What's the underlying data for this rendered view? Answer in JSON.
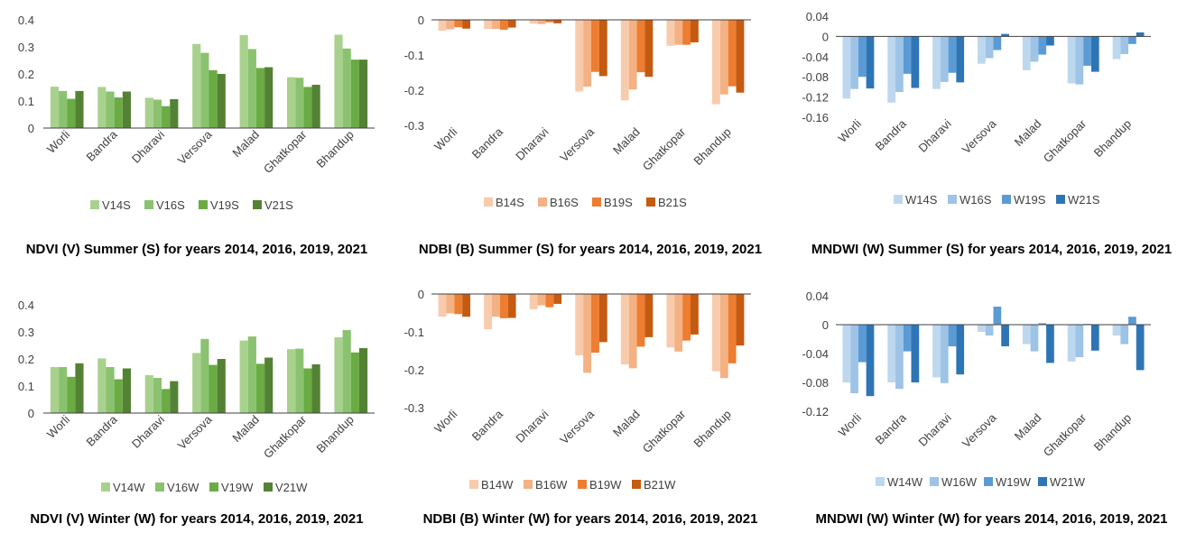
{
  "chart_data": [
    {
      "id": "ndvi-summer",
      "type": "bar",
      "title": "NDVI (V) Summer (S) for years 2014, 2016, 2019, 2021",
      "categories": [
        "Worli",
        "Bandra",
        "Dharavi",
        "Versova",
        "Malad",
        "Ghatkopar",
        "Bhandup"
      ],
      "series": [
        {
          "name": "V14S",
          "color": "#a9d18e",
          "values": [
            0.153,
            0.152,
            0.112,
            0.311,
            0.344,
            0.188,
            0.345
          ]
        },
        {
          "name": "V16S",
          "color": "#8bc270",
          "values": [
            0.137,
            0.135,
            0.105,
            0.278,
            0.292,
            0.186,
            0.294
          ]
        },
        {
          "name": "V19S",
          "color": "#6aab44",
          "values": [
            0.108,
            0.113,
            0.081,
            0.214,
            0.222,
            0.152,
            0.253
          ]
        },
        {
          "name": "V21S",
          "color": "#548235",
          "values": [
            0.137,
            0.135,
            0.107,
            0.2,
            0.225,
            0.16,
            0.253
          ]
        }
      ],
      "yticks": [
        "0.4",
        "0.3",
        "0.2",
        "0.1",
        "0"
      ],
      "ylim": [
        0,
        0.4
      ],
      "legend": "bottom"
    },
    {
      "id": "ndbi-summer",
      "type": "bar",
      "title": "NDBI (B) Summer (S) for years 2014, 2016, 2019, 2021",
      "categories": [
        "Worli",
        "Bandra",
        "Dharavi",
        "Versova",
        "Malad",
        "Ghatkopar",
        "Bhandup"
      ],
      "series": [
        {
          "name": "B14S",
          "color": "#f8cbad",
          "values": [
            -0.031,
            -0.026,
            -0.011,
            -0.204,
            -0.229,
            -0.074,
            -0.24
          ]
        },
        {
          "name": "B16S",
          "color": "#f4b183",
          "values": [
            -0.027,
            -0.026,
            -0.012,
            -0.19,
            -0.198,
            -0.071,
            -0.212
          ]
        },
        {
          "name": "B19S",
          "color": "#ed7d31",
          "values": [
            -0.021,
            -0.028,
            -0.007,
            -0.148,
            -0.149,
            -0.071,
            -0.189
          ]
        },
        {
          "name": "B21S",
          "color": "#c55a11",
          "values": [
            -0.025,
            -0.022,
            -0.01,
            -0.16,
            -0.162,
            -0.064,
            -0.207
          ]
        }
      ],
      "yticks": [
        "0",
        "-0.1",
        "-0.2",
        "-0.3"
      ],
      "ylim": [
        -0.3,
        0
      ],
      "legend": "bottom"
    },
    {
      "id": "mndwi-summer",
      "type": "bar",
      "title": "MNDWI (W) Summer (S) for years 2014, 2016, 2019, 2021",
      "categories": [
        "Worli",
        "Bandra",
        "Dharavi",
        "Versova",
        "Malad",
        "Ghatkopar",
        "Bhandup"
      ],
      "series": [
        {
          "name": "W14S",
          "color": "#bdd7ee",
          "values": [
            -0.123,
            -0.131,
            -0.104,
            -0.054,
            -0.067,
            -0.093,
            -0.045
          ]
        },
        {
          "name": "W16S",
          "color": "#9dc3e6",
          "values": [
            -0.104,
            -0.11,
            -0.09,
            -0.043,
            -0.05,
            -0.095,
            -0.035
          ]
        },
        {
          "name": "W19S",
          "color": "#5b9bd5",
          "values": [
            -0.08,
            -0.074,
            -0.072,
            -0.027,
            -0.036,
            -0.058,
            -0.015
          ]
        },
        {
          "name": "W21S",
          "color": "#2e75b6",
          "values": [
            -0.103,
            -0.102,
            -0.091,
            0.005,
            -0.018,
            -0.07,
            0.008
          ]
        }
      ],
      "yticks": [
        "0.04",
        "0",
        "-0.04",
        "-0.08",
        "-0.12",
        "-0.16"
      ],
      "ylim": [
        -0.16,
        0.04
      ],
      "legend": "bottom"
    },
    {
      "id": "ndvi-winter",
      "type": "bar",
      "title": "NDVI (V) Winter (W) for years 2014, 2016, 2019, 2021",
      "categories": [
        "Worli",
        "Bandra",
        "Dharavi",
        "Versova",
        "Malad",
        "Ghatkopar",
        "Bhandup"
      ],
      "series": [
        {
          "name": "V14W",
          "color": "#a9d18e",
          "values": [
            0.17,
            0.202,
            0.14,
            0.222,
            0.268,
            0.236,
            0.28
          ]
        },
        {
          "name": "V16W",
          "color": "#8bc270",
          "values": [
            0.17,
            0.17,
            0.13,
            0.274,
            0.283,
            0.238,
            0.307
          ]
        },
        {
          "name": "V19W",
          "color": "#6aab44",
          "values": [
            0.134,
            0.125,
            0.089,
            0.178,
            0.182,
            0.165,
            0.224
          ]
        },
        {
          "name": "V21W",
          "color": "#548235",
          "values": [
            0.184,
            0.165,
            0.118,
            0.2,
            0.205,
            0.18,
            0.24
          ]
        }
      ],
      "yticks": [
        "0.4",
        "0.3",
        "0.2",
        "0.1",
        "0"
      ],
      "ylim": [
        0,
        0.4
      ],
      "legend": "bottom"
    },
    {
      "id": "ndbi-winter",
      "type": "bar",
      "title": "NDBI (B) Winter (W) for years 2014, 2016, 2019, 2021",
      "categories": [
        "Worli",
        "Bandra",
        "Dharavi",
        "Versova",
        "Malad",
        "Ghatkopar",
        "Bhandup"
      ],
      "series": [
        {
          "name": "B14W",
          "color": "#f8cbad",
          "values": [
            -0.06,
            -0.093,
            -0.04,
            -0.162,
            -0.186,
            -0.141,
            -0.204
          ]
        },
        {
          "name": "B16W",
          "color": "#f4b183",
          "values": [
            -0.051,
            -0.06,
            -0.03,
            -0.208,
            -0.196,
            -0.152,
            -0.222
          ]
        },
        {
          "name": "B19W",
          "color": "#ed7d31",
          "values": [
            -0.053,
            -0.064,
            -0.035,
            -0.155,
            -0.139,
            -0.123,
            -0.183
          ]
        },
        {
          "name": "B21W",
          "color": "#c55a11",
          "values": [
            -0.06,
            -0.063,
            -0.026,
            -0.127,
            -0.114,
            -0.107,
            -0.136
          ]
        }
      ],
      "yticks": [
        "0",
        "-0.1",
        "-0.2",
        "-0.3"
      ],
      "ylim": [
        -0.3,
        0
      ],
      "legend": "bottom"
    },
    {
      "id": "mndwi-winter",
      "type": "bar",
      "title": "MNDWI (W) Winter (W) for years 2014, 2016, 2019, 2021",
      "categories": [
        "Worli",
        "Bandra",
        "Dharavi",
        "Versova",
        "Malad",
        "Ghatkopar",
        "Bhandup"
      ],
      "series": [
        {
          "name": "W14W",
          "color": "#bdd7ee",
          "values": [
            -0.08,
            -0.08,
            -0.073,
            -0.01,
            -0.027,
            -0.051,
            -0.015
          ]
        },
        {
          "name": "W16W",
          "color": "#9dc3e6",
          "values": [
            -0.095,
            -0.089,
            -0.081,
            -0.015,
            -0.037,
            -0.045,
            -0.027
          ]
        },
        {
          "name": "W19W",
          "color": "#5b9bd5",
          "values": [
            -0.052,
            -0.037,
            -0.03,
            0.025,
            0.002,
            0.001,
            0.011
          ]
        },
        {
          "name": "W21W",
          "color": "#2e75b6",
          "values": [
            -0.099,
            -0.08,
            -0.069,
            -0.03,
            -0.053,
            -0.036,
            -0.063
          ]
        }
      ],
      "yticks": [
        "0.04",
        "0",
        "-0.04",
        "-0.08",
        "-0.12"
      ],
      "ylim": [
        -0.12,
        0.04
      ],
      "legend": "bottom"
    }
  ]
}
